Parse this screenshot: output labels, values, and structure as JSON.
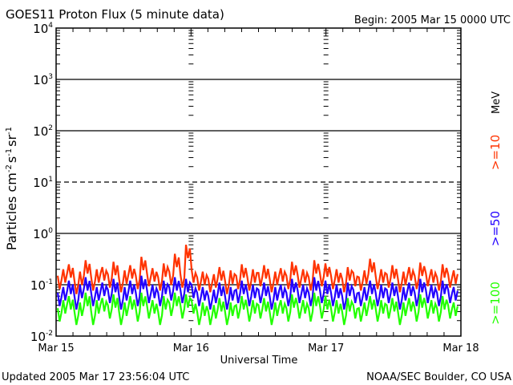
{
  "chart_data": {
    "type": "line",
    "title": "GOES11 Proton Flux (5 minute data)",
    "begin_label": "Begin: 2005 Mar 15 0000 UTC",
    "xlabel": "Universal Time",
    "ylabel": "Particles cm-2 s-1 sr-1",
    "ylabel_parts": {
      "base": "Particles cm",
      "e1": "-2",
      "s": "s",
      "e2": "-1",
      "sr": "sr",
      "e3": "-1"
    },
    "yscale": "log",
    "ylim": [
      0.01,
      10000
    ],
    "yticks": [
      {
        "value": 10000,
        "base": "10",
        "exp": "4"
      },
      {
        "value": 1000,
        "base": "10",
        "exp": "3"
      },
      {
        "value": 100,
        "base": "10",
        "exp": "2"
      },
      {
        "value": 10,
        "base": "10",
        "exp": "1"
      },
      {
        "value": 1,
        "base": "10",
        "exp": "0"
      },
      {
        "value": 0.1,
        "base": "10",
        "exp": "-1"
      },
      {
        "value": 0.01,
        "base": "10",
        "exp": "-2"
      }
    ],
    "threshold_dashed_value": 10,
    "xlim_hours": [
      0,
      72
    ],
    "xticks": [
      {
        "hour": 0,
        "label": "Mar 15"
      },
      {
        "hour": 24,
        "label": "Mar 16"
      },
      {
        "hour": 48,
        "label": "Mar 17"
      },
      {
        "hour": 72,
        "label": "Mar 18"
      }
    ],
    "unit_label": "MeV",
    "series": [
      {
        "name": ">=10",
        "color": "#ff3300",
        "values": [
          0.15,
          0.2,
          0.25,
          0.12,
          0.18,
          0.3,
          0.14,
          0.2,
          0.22,
          0.16,
          0.28,
          0.13,
          0.19,
          0.24,
          0.15,
          0.35,
          0.17,
          0.21,
          0.14,
          0.26,
          0.18,
          0.4,
          0.16,
          0.6,
          0.2,
          0.14,
          0.18,
          0.13,
          0.16,
          0.22,
          0.12,
          0.19,
          0.15,
          0.25,
          0.14,
          0.2,
          0.17,
          0.24,
          0.13,
          0.18,
          0.21,
          0.15,
          0.28,
          0.16,
          0.2,
          0.14,
          0.3,
          0.17,
          0.26,
          0.15,
          0.2,
          0.13,
          0.22,
          0.17,
          0.14,
          0.19,
          0.32,
          0.15,
          0.2,
          0.16,
          0.24,
          0.13,
          0.18,
          0.22,
          0.15,
          0.27,
          0.17,
          0.2,
          0.14,
          0.25,
          0.16,
          0.19
        ]
      },
      {
        "name": ">=50",
        "color": "#2200ff",
        "values": [
          0.07,
          0.09,
          0.12,
          0.06,
          0.1,
          0.14,
          0.07,
          0.09,
          0.11,
          0.08,
          0.13,
          0.06,
          0.09,
          0.12,
          0.07,
          0.15,
          0.08,
          0.1,
          0.07,
          0.12,
          0.09,
          0.14,
          0.08,
          0.13,
          0.1,
          0.07,
          0.09,
          0.06,
          0.08,
          0.11,
          0.06,
          0.09,
          0.08,
          0.12,
          0.07,
          0.1,
          0.08,
          0.11,
          0.06,
          0.09,
          0.1,
          0.07,
          0.13,
          0.08,
          0.1,
          0.07,
          0.14,
          0.08,
          0.12,
          0.07,
          0.1,
          0.06,
          0.11,
          0.08,
          0.07,
          0.09,
          0.12,
          0.07,
          0.1,
          0.08,
          0.11,
          0.06,
          0.09,
          0.11,
          0.07,
          0.13,
          0.08,
          0.1,
          0.07,
          0.12,
          0.08,
          0.09
        ]
      },
      {
        "name": ">=100",
        "color": "#22ff00",
        "values": [
          0.035,
          0.05,
          0.06,
          0.03,
          0.045,
          0.07,
          0.03,
          0.05,
          0.055,
          0.04,
          0.065,
          0.03,
          0.045,
          0.06,
          0.035,
          0.07,
          0.04,
          0.05,
          0.03,
          0.06,
          0.045,
          0.07,
          0.04,
          0.065,
          0.05,
          0.03,
          0.045,
          0.03,
          0.04,
          0.055,
          0.03,
          0.045,
          0.04,
          0.06,
          0.035,
          0.05,
          0.04,
          0.055,
          0.03,
          0.045,
          0.05,
          0.035,
          0.065,
          0.04,
          0.05,
          0.035,
          0.07,
          0.04,
          0.06,
          0.035,
          0.05,
          0.03,
          0.055,
          0.04,
          0.035,
          0.045,
          0.06,
          0.035,
          0.05,
          0.04,
          0.055,
          0.03,
          0.045,
          0.055,
          0.035,
          0.065,
          0.04,
          0.05,
          0.035,
          0.06,
          0.04,
          0.045
        ]
      }
    ]
  },
  "footer": {
    "updated": "Updated 2005 Mar 17 23:56:04 UTC",
    "credit": "NOAA/SEC Boulder, CO USA"
  }
}
